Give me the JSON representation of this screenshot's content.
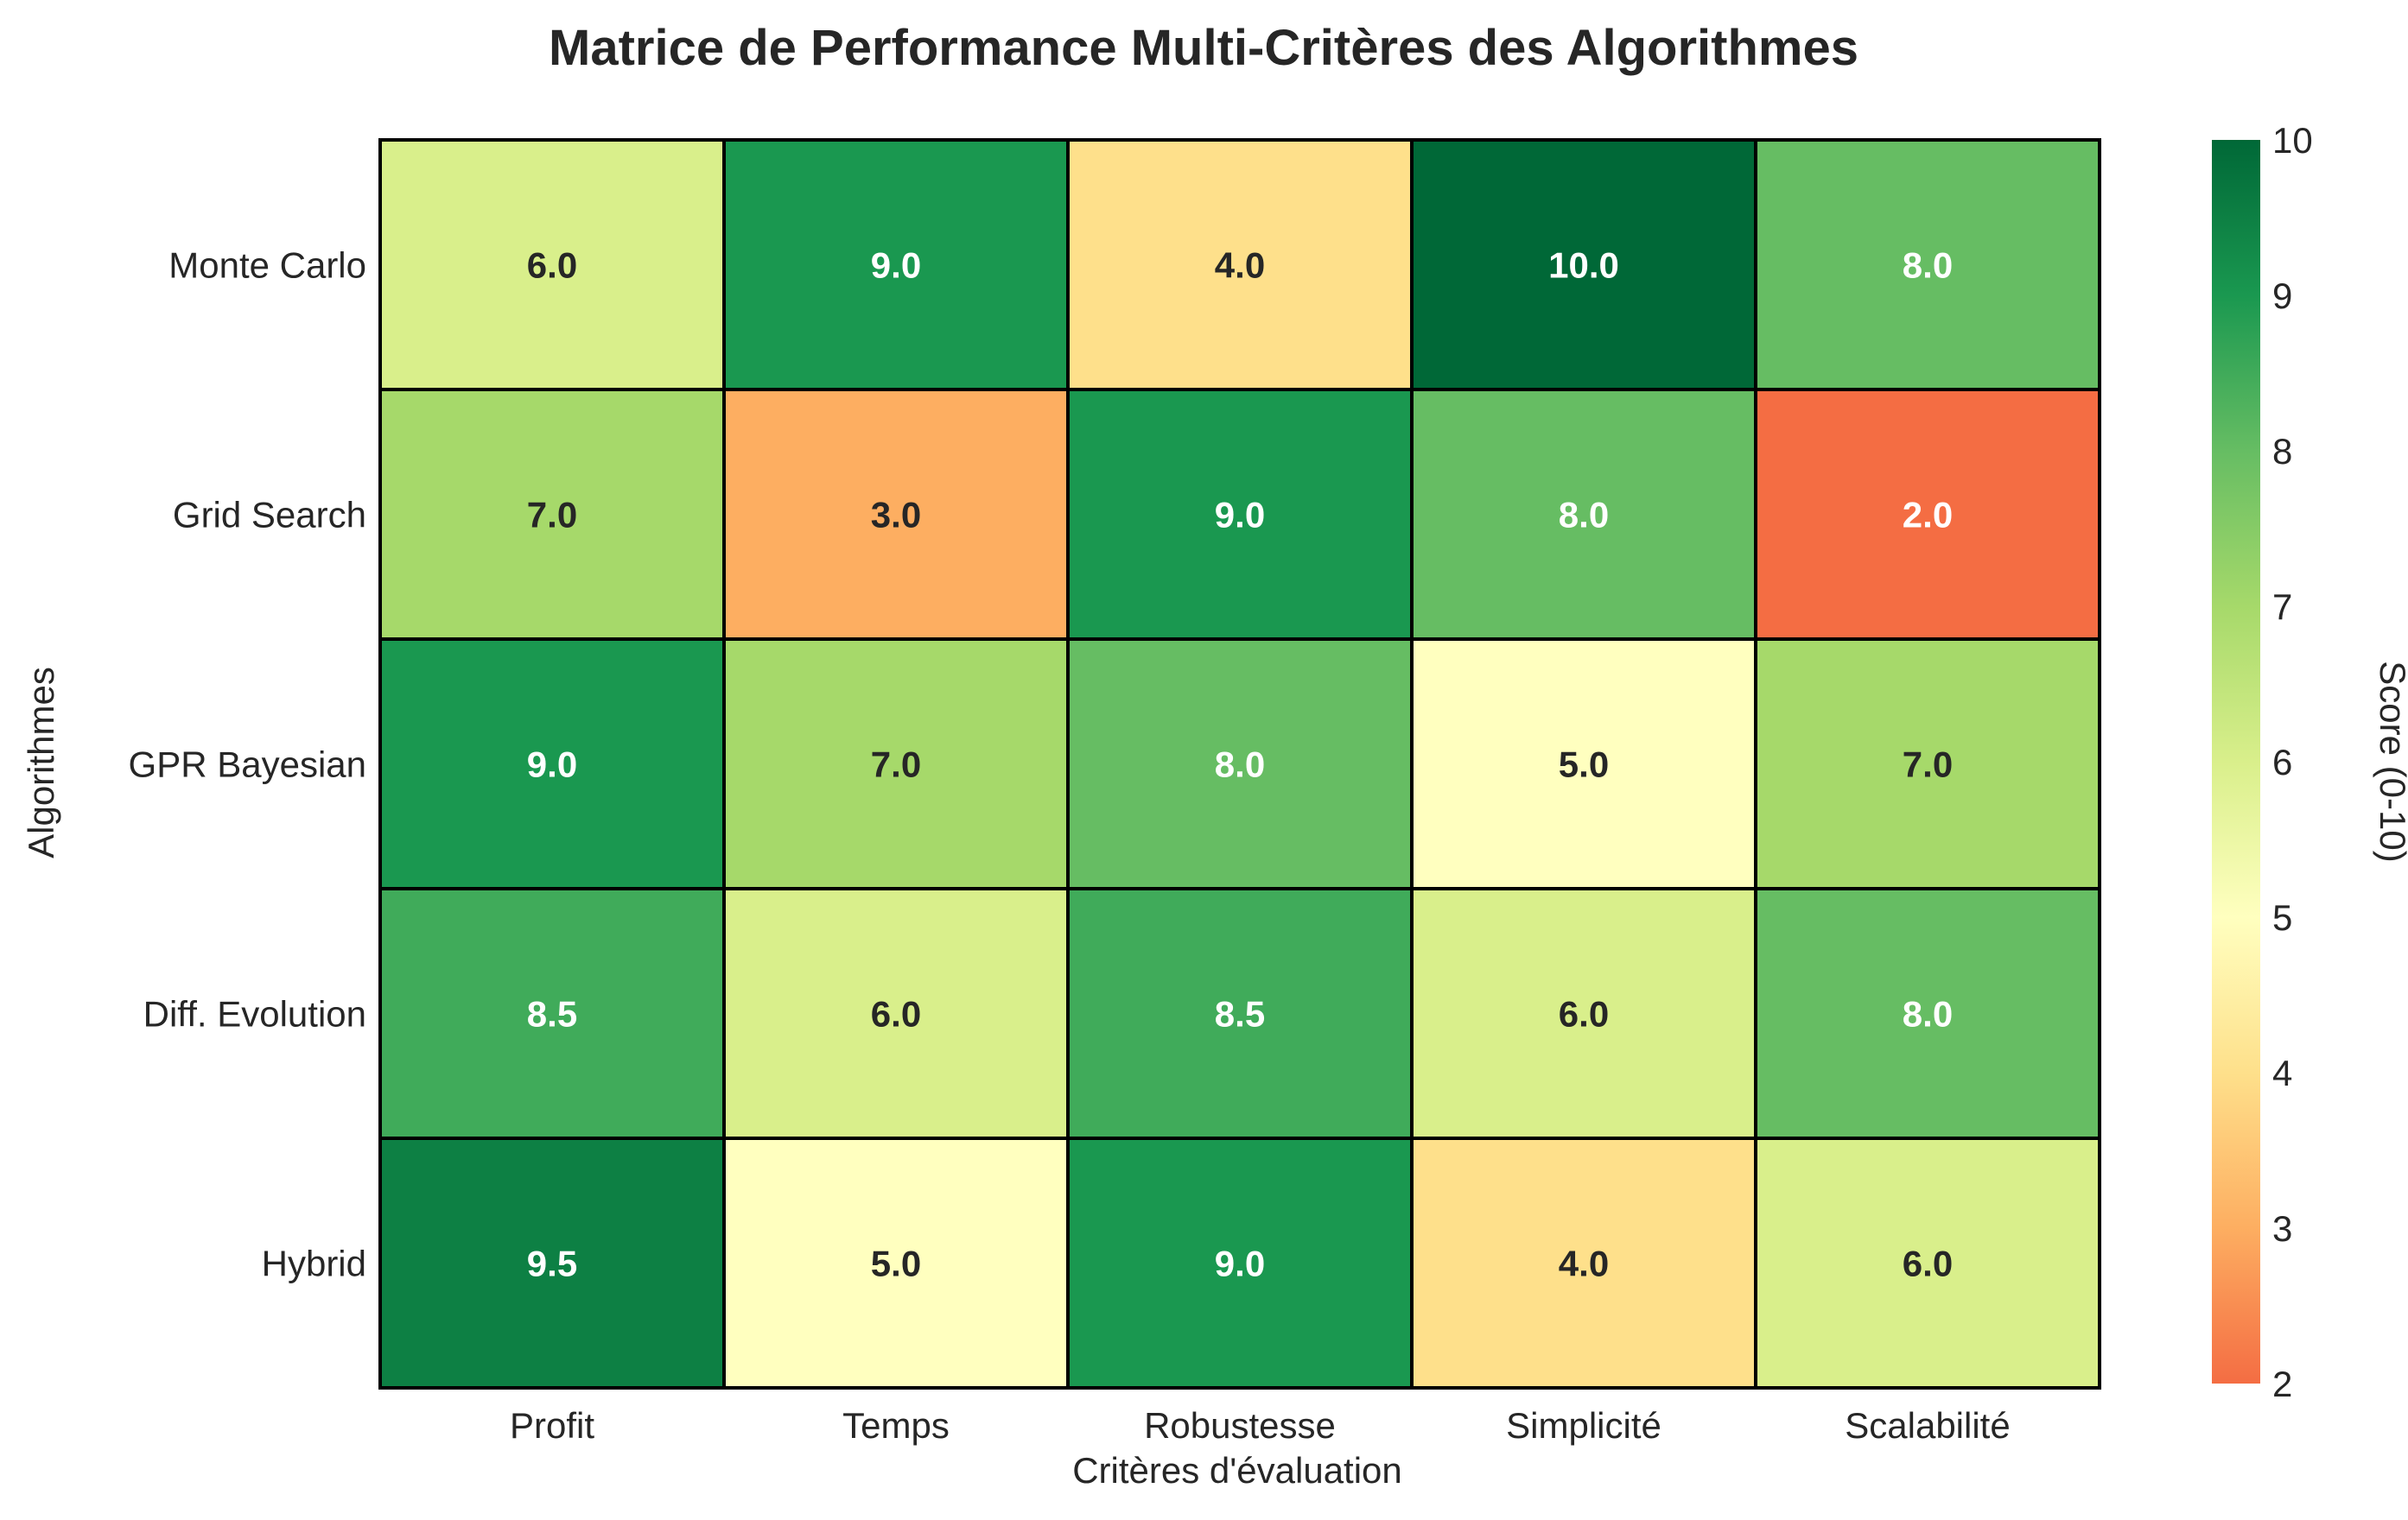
{
  "chart_data": {
    "type": "heatmap",
    "title": "Matrice de Performance Multi-Critères des Algorithmes",
    "xlabel": "Critères d'évaluation",
    "ylabel": "Algorithmes",
    "x_categories": [
      "Profit",
      "Temps",
      "Robustesse",
      "Simplicité",
      "Scalabilité"
    ],
    "y_categories": [
      "Monte Carlo",
      "Grid Search",
      "GPR Bayesian",
      "Diff. Evolution",
      "Hybrid"
    ],
    "values": [
      [
        6.0,
        9.0,
        4.0,
        10.0,
        8.0
      ],
      [
        7.0,
        3.0,
        9.0,
        8.0,
        2.0
      ],
      [
        9.0,
        7.0,
        8.0,
        5.0,
        7.0
      ],
      [
        8.5,
        6.0,
        8.5,
        6.0,
        8.0
      ],
      [
        9.5,
        5.0,
        9.0,
        4.0,
        6.0
      ]
    ],
    "value_format": "one decimal",
    "colorbar": {
      "label": "Score (0-10)",
      "range": [
        2,
        10
      ],
      "ticks": [
        "2",
        "3",
        "4",
        "5",
        "6",
        "7",
        "8",
        "9",
        "10"
      ],
      "colormap": "RdYlGn",
      "low_color": "#f46d43",
      "mid_color": "#ffffbf",
      "high_color": "#006837"
    }
  }
}
